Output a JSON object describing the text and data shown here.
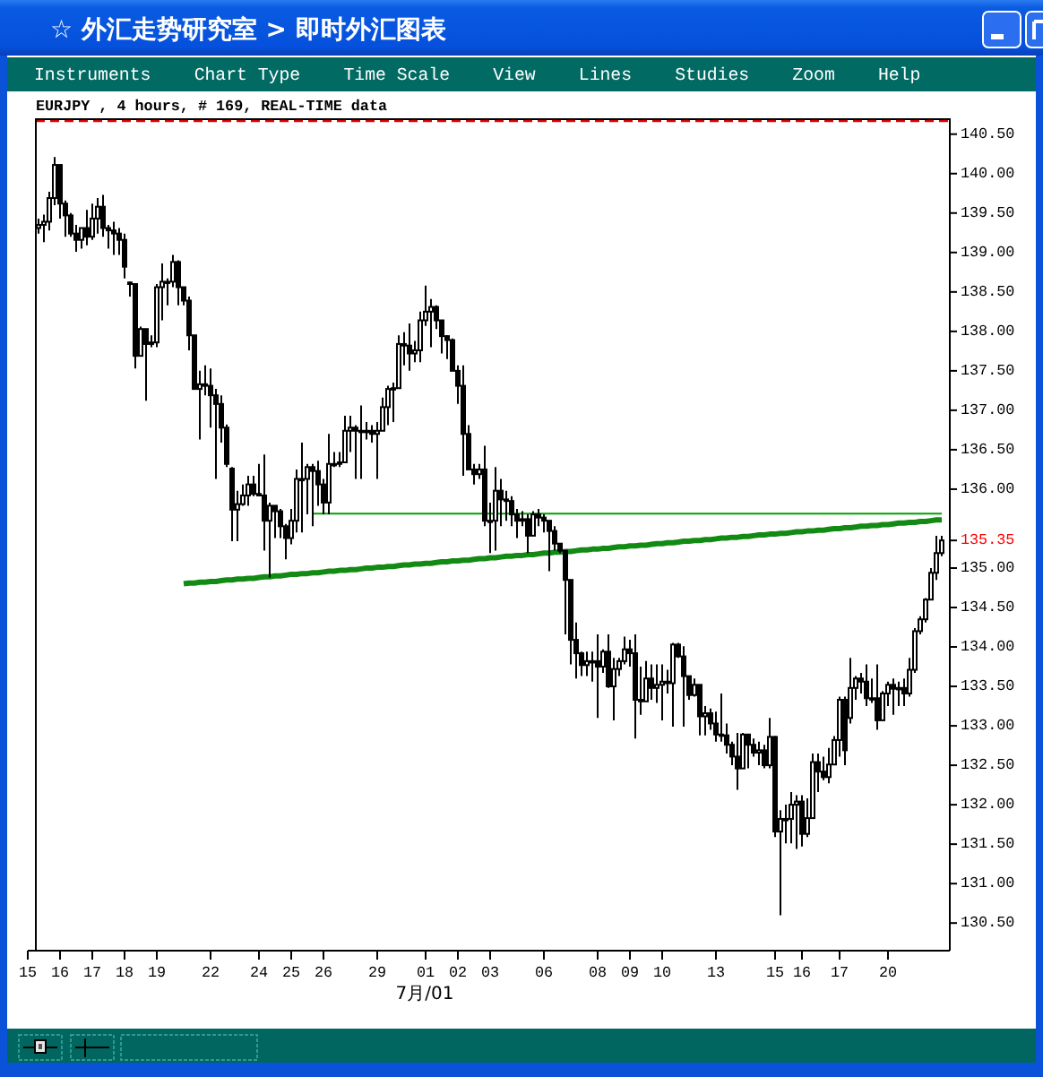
{
  "chart_data": {
    "type": "candlestick",
    "title": "☆ 外汇走势研究室 > 即时外汇图表",
    "subtitle": "EURJPY , 4 hours, # 169, REAL-TIME data",
    "xlabel": "7月/01",
    "annotations": [
      "Instruments",
      "Chart Type",
      "Time Scale",
      "View",
      "Lines",
      "Studies",
      "Zoom",
      "Help",
      "135.35"
    ],
    "categories": [
      "15",
      null,
      null,
      null,
      null,
      null,
      "16",
      null,
      null,
      null,
      null,
      null,
      "17",
      null,
      null,
      null,
      null,
      null,
      "18",
      null,
      null,
      null,
      null,
      null,
      "19",
      null,
      null,
      null,
      null,
      null,
      null,
      null,
      null,
      null,
      "22",
      null,
      null,
      null,
      null,
      null,
      null,
      null,
      null,
      "24",
      null,
      null,
      null,
      null,
      null,
      "25",
      null,
      null,
      null,
      null,
      null,
      "26",
      null,
      null,
      null,
      null,
      null,
      null,
      null,
      null,
      null,
      "29",
      null,
      null,
      null,
      null,
      null,
      null,
      null,
      null,
      "01",
      null,
      null,
      null,
      null,
      null,
      "02",
      null,
      null,
      null,
      null,
      null,
      "03",
      null,
      null,
      null,
      null,
      null,
      null,
      null,
      null,
      null,
      "06",
      null,
      null,
      null,
      null,
      null,
      null,
      null,
      null,
      null,
      "08",
      null,
      null,
      null,
      null,
      null,
      "09",
      null,
      null,
      null,
      null,
      null,
      "10",
      null,
      null,
      null,
      null,
      null,
      null,
      null,
      null,
      null,
      "13",
      null,
      null,
      null,
      null,
      null,
      null,
      null,
      null,
      null,
      null,
      "15",
      null,
      null,
      null,
      null,
      "16",
      null,
      null,
      null,
      null,
      null,
      null,
      "17",
      null,
      null,
      null,
      null,
      null,
      null,
      null,
      null,
      "20",
      null,
      null,
      null,
      null,
      null,
      null,
      null,
      null,
      null,
      null
    ],
    "ohlc": [
      null,
      null,
      [
        139.31,
        139.43,
        139.24,
        139.35
      ],
      [
        139.35,
        139.48,
        139.13,
        139.39
      ],
      [
        139.39,
        139.77,
        139.28,
        139.69
      ],
      [
        139.69,
        140.21,
        139.6,
        140.11
      ],
      [
        140.11,
        140.11,
        139.43,
        139.62
      ],
      [
        139.62,
        139.66,
        139.2,
        139.47
      ],
      [
        139.47,
        139.5,
        139.2,
        139.24
      ],
      [
        139.24,
        139.35,
        139.01,
        139.16
      ],
      [
        139.16,
        139.31,
        139.05,
        139.31
      ],
      [
        139.31,
        139.54,
        139.09,
        139.2
      ],
      [
        139.2,
        139.62,
        139.16,
        139.43
      ],
      [
        139.43,
        139.69,
        139.24,
        139.58
      ],
      [
        139.58,
        139.73,
        139.2,
        139.31
      ],
      [
        139.31,
        139.35,
        139.05,
        139.28
      ],
      [
        139.28,
        139.39,
        138.97,
        139.24
      ],
      [
        139.24,
        139.31,
        138.97,
        139.16
      ],
      [
        139.16,
        139.24,
        138.67,
        138.82
      ],
      [
        138.6,
        138.63,
        138.44,
        138.62
      ],
      [
        138.6,
        138.6,
        137.53,
        137.69
      ],
      [
        137.69,
        138.06,
        137.69,
        138.03
      ],
      [
        138.03,
        138.03,
        137.12,
        137.84
      ],
      [
        137.84,
        137.95,
        137.8,
        137.86
      ],
      [
        137.86,
        138.6,
        137.8,
        138.56
      ],
      [
        138.56,
        138.86,
        138.14,
        138.63
      ],
      [
        138.63,
        138.67,
        138.33,
        138.63
      ],
      [
        138.63,
        138.97,
        138.56,
        138.88
      ],
      [
        138.88,
        138.9,
        138.33,
        138.56
      ],
      [
        138.56,
        138.56,
        138.33,
        138.39
      ],
      [
        138.39,
        138.44,
        137.76,
        137.95
      ],
      [
        137.95,
        137.95,
        137.27,
        137.27
      ],
      [
        137.27,
        137.5,
        136.63,
        137.33
      ],
      [
        137.33,
        137.57,
        137.19,
        137.31
      ],
      [
        137.31,
        137.53,
        136.78,
        137.19
      ],
      [
        137.19,
        137.27,
        136.13,
        137.08
      ],
      [
        137.08,
        137.19,
        136.59,
        136.78
      ],
      [
        136.78,
        136.82,
        136.28,
        136.32
      ],
      [
        136.26,
        136.28,
        135.34,
        135.74
      ],
      [
        135.74,
        135.98,
        135.34,
        135.81
      ],
      [
        135.81,
        136.06,
        135.79,
        135.92
      ],
      [
        135.92,
        136.17,
        135.79,
        136.06
      ],
      [
        136.06,
        136.17,
        135.91,
        135.94
      ],
      [
        135.94,
        136.32,
        135.91,
        135.92
      ],
      [
        135.92,
        136.44,
        135.22,
        135.6
      ],
      [
        135.6,
        135.83,
        134.88,
        135.79
      ],
      [
        135.79,
        135.79,
        135.38,
        135.72
      ],
      [
        135.72,
        135.75,
        135.38,
        135.53
      ],
      [
        135.53,
        135.56,
        135.11,
        135.38
      ],
      [
        135.38,
        135.75,
        135.3,
        135.6
      ],
      [
        135.6,
        136.25,
        135.45,
        136.13
      ],
      [
        136.13,
        136.59,
        135.45,
        136.13
      ],
      [
        136.13,
        136.32,
        135.68,
        136.28
      ],
      [
        136.28,
        136.32,
        135.53,
        136.23
      ],
      [
        136.23,
        136.36,
        135.79,
        136.06
      ],
      [
        136.06,
        136.13,
        135.68,
        135.83
      ],
      [
        135.83,
        136.7,
        135.68,
        136.32
      ],
      [
        136.32,
        136.47,
        136.28,
        136.32
      ],
      [
        136.32,
        136.47,
        136.28,
        136.34
      ],
      [
        136.34,
        136.93,
        136.34,
        136.74
      ],
      [
        136.74,
        136.93,
        136.47,
        136.78
      ],
      [
        136.78,
        136.81,
        136.13,
        136.74
      ],
      [
        136.74,
        137.06,
        136.13,
        136.74
      ],
      [
        136.74,
        136.85,
        136.63,
        136.74
      ],
      [
        136.74,
        136.81,
        136.59,
        136.7
      ],
      [
        136.7,
        136.85,
        136.13,
        136.74
      ],
      [
        136.74,
        137.16,
        136.74,
        137.04
      ],
      [
        137.04,
        137.31,
        136.81,
        137.27
      ],
      [
        137.27,
        137.35,
        136.85,
        137.28
      ],
      [
        137.28,
        137.95,
        137.27,
        137.84
      ],
      [
        137.84,
        137.99,
        137.57,
        137.82
      ],
      [
        137.82,
        138.1,
        137.5,
        137.72
      ],
      [
        137.72,
        137.88,
        137.61,
        137.76
      ],
      [
        137.76,
        138.25,
        137.61,
        138.14
      ],
      [
        138.14,
        138.58,
        138.07,
        138.25
      ],
      [
        138.25,
        138.41,
        137.8,
        138.31
      ],
      [
        138.31,
        138.33,
        138.03,
        138.14
      ],
      [
        138.14,
        138.14,
        137.72,
        137.94
      ],
      [
        137.94,
        137.95,
        137.65,
        137.89
      ],
      [
        137.89,
        137.91,
        137.5,
        137.5
      ],
      [
        137.5,
        137.57,
        137.08,
        137.31
      ],
      [
        137.31,
        137.57,
        136.17,
        136.7
      ],
      [
        136.7,
        136.81,
        136.25,
        136.25
      ],
      [
        136.25,
        136.32,
        136.06,
        136.19
      ],
      [
        136.19,
        136.32,
        136.13,
        136.25
      ],
      [
        136.25,
        136.55,
        135.53,
        135.6
      ],
      [
        135.6,
        135.83,
        135.19,
        135.6
      ],
      [
        135.6,
        136.28,
        135.22,
        135.98
      ],
      [
        135.98,
        136.13,
        135.53,
        135.87
      ],
      [
        135.87,
        135.98,
        135.6,
        135.85
      ],
      [
        135.85,
        135.91,
        135.53,
        135.68
      ],
      [
        135.68,
        135.75,
        135.38,
        135.6
      ],
      [
        135.6,
        135.72,
        135.53,
        135.62
      ],
      [
        135.62,
        135.68,
        135.19,
        135.41
      ],
      [
        135.41,
        135.72,
        135.41,
        135.68
      ],
      [
        135.68,
        135.75,
        135.53,
        135.64
      ],
      [
        135.64,
        135.68,
        135.45,
        135.6
      ],
      [
        135.6,
        135.6,
        134.96,
        135.47
      ],
      [
        135.47,
        135.53,
        135.22,
        135.31
      ],
      [
        135.31,
        135.31,
        135.19,
        135.22
      ],
      [
        135.22,
        135.22,
        134.16,
        134.85
      ],
      [
        134.85,
        134.85,
        133.78,
        134.09
      ],
      [
        134.09,
        134.31,
        133.6,
        133.92
      ],
      [
        133.92,
        133.94,
        133.63,
        133.77
      ],
      [
        133.77,
        133.94,
        133.63,
        133.82
      ],
      [
        133.82,
        133.94,
        133.56,
        133.82
      ],
      [
        133.82,
        134.16,
        133.1,
        133.75
      ],
      [
        133.75,
        133.97,
        133.67,
        133.94
      ],
      [
        133.94,
        134.16,
        133.48,
        133.5
      ],
      [
        133.5,
        133.86,
        133.07,
        133.72
      ],
      [
        133.72,
        133.86,
        133.63,
        133.82
      ],
      [
        133.82,
        134.13,
        133.78,
        133.97
      ],
      [
        133.97,
        134.09,
        133.75,
        133.92
      ],
      [
        133.92,
        134.16,
        132.84,
        133.33
      ],
      [
        133.33,
        133.75,
        133.14,
        133.31
      ],
      [
        133.31,
        133.82,
        133.31,
        133.6
      ],
      [
        133.6,
        133.78,
        133.33,
        133.48
      ],
      [
        133.48,
        133.78,
        133.29,
        133.52
      ],
      [
        133.52,
        133.78,
        133.07,
        133.56
      ],
      [
        133.56,
        133.71,
        133.41,
        133.54
      ],
      [
        133.54,
        134.05,
        132.99,
        134.03
      ],
      [
        134.03,
        134.05,
        133.86,
        133.88
      ],
      [
        133.88,
        134.01,
        132.99,
        133.63
      ],
      [
        133.63,
        133.63,
        133.33,
        133.39
      ],
      [
        133.39,
        133.6,
        133.37,
        133.52
      ],
      [
        133.52,
        133.52,
        132.88,
        133.12
      ],
      [
        133.12,
        133.25,
        132.88,
        133.16
      ],
      [
        133.16,
        133.22,
        132.95,
        133.03
      ],
      [
        133.03,
        133.18,
        132.8,
        132.89
      ],
      [
        132.89,
        133.41,
        132.8,
        132.88
      ],
      [
        132.88,
        133.03,
        132.65,
        132.76
      ],
      [
        132.76,
        132.8,
        132.5,
        132.61
      ],
      [
        132.61,
        132.91,
        132.19,
        132.46
      ],
      [
        132.46,
        132.91,
        132.46,
        132.89
      ],
      [
        132.89,
        132.89,
        132.46,
        132.76
      ],
      [
        132.76,
        132.84,
        132.61,
        132.66
      ],
      [
        132.66,
        132.8,
        132.5,
        132.69
      ],
      [
        132.69,
        132.76,
        132.46,
        132.5
      ],
      [
        132.5,
        133.1,
        132.46,
        132.86
      ],
      [
        132.86,
        132.87,
        131.59,
        131.66
      ],
      [
        131.66,
        131.93,
        130.6,
        131.82
      ],
      [
        131.82,
        132.0,
        131.51,
        131.82
      ],
      [
        131.82,
        132.16,
        131.51,
        132.0
      ],
      [
        132.0,
        132.12,
        131.44,
        132.04
      ],
      [
        132.04,
        132.12,
        131.47,
        131.63
      ],
      [
        131.63,
        132.08,
        131.59,
        131.83
      ],
      [
        131.83,
        132.65,
        131.82,
        132.54
      ],
      [
        132.54,
        132.65,
        132.16,
        132.42
      ],
      [
        132.42,
        132.61,
        132.31,
        132.35
      ],
      [
        132.35,
        132.72,
        132.27,
        132.51
      ],
      [
        132.51,
        132.87,
        132.51,
        132.82
      ],
      [
        132.82,
        133.37,
        132.61,
        133.33
      ],
      [
        133.33,
        133.37,
        132.5,
        132.69
      ],
      [
        133.1,
        133.86,
        133.03,
        133.48
      ],
      [
        133.48,
        133.63,
        133.33,
        133.6
      ],
      [
        133.6,
        133.67,
        133.41,
        133.56
      ],
      [
        133.56,
        133.78,
        133.25,
        133.35
      ],
      [
        133.35,
        133.6,
        133.29,
        133.35
      ],
      [
        133.35,
        133.78,
        132.95,
        133.07
      ],
      [
        133.07,
        133.44,
        133.07,
        133.41
      ],
      [
        133.41,
        133.56,
        133.25,
        133.52
      ],
      [
        133.52,
        133.6,
        133.14,
        133.47
      ],
      [
        133.47,
        133.56,
        133.25,
        133.48
      ],
      [
        133.48,
        133.6,
        133.25,
        133.41
      ],
      [
        133.41,
        133.86,
        133.37,
        133.71
      ],
      [
        133.71,
        134.24,
        133.67,
        134.2
      ],
      [
        134.2,
        134.39,
        134.16,
        134.35
      ],
      [
        134.35,
        134.62,
        134.31,
        134.6
      ],
      [
        134.6,
        135.0,
        134.6,
        134.94
      ],
      [
        134.94,
        135.41,
        134.85,
        135.19
      ],
      [
        135.19,
        135.41,
        135.15,
        135.35
      ]
    ],
    "series": [
      {
        "type": "line",
        "color": "#138a13",
        "values": [
          null,
          null,
          null,
          null,
          null,
          null,
          null,
          null,
          null,
          null,
          null,
          null,
          null,
          null,
          null,
          null,
          null,
          null,
          null,
          null,
          null,
          null,
          null,
          null,
          null,
          null,
          null,
          null,
          null,
          134.8,
          134.81,
          134.81,
          134.82,
          134.82,
          134.83,
          134.83,
          134.84,
          134.85,
          134.85,
          134.86,
          134.86,
          134.87,
          134.87,
          134.88,
          134.89,
          134.89,
          134.9,
          134.9,
          134.91,
          134.92,
          134.92,
          134.93,
          134.93,
          134.94,
          134.94,
          134.95,
          134.96,
          134.96,
          134.97,
          134.97,
          134.98,
          134.98,
          134.99,
          135,
          135,
          135.01,
          135.01,
          135.02,
          135.02,
          135.03,
          135.04,
          135.04,
          135.05,
          135.05,
          135.06,
          135.06,
          135.07,
          135.08,
          135.08,
          135.09,
          135.09,
          135.1,
          135.1,
          135.11,
          135.12,
          135.12,
          135.13,
          135.13,
          135.14,
          135.15,
          135.15,
          135.16,
          135.16,
          135.17,
          135.17,
          135.18,
          135.19,
          135.19,
          135.2,
          135.2,
          135.21,
          135.21,
          135.22,
          135.23,
          135.23,
          135.24,
          135.24,
          135.25,
          135.25,
          135.26,
          135.27,
          135.27,
          135.28,
          135.28,
          135.29,
          135.29,
          135.3,
          135.31,
          135.31,
          135.32,
          135.32,
          135.33,
          135.34,
          135.34,
          135.35,
          135.35,
          135.36,
          135.36,
          135.37,
          135.38,
          135.38,
          135.39,
          135.39,
          135.4,
          135.4,
          135.41,
          135.42,
          135.42,
          135.43,
          135.43,
          135.44,
          135.44,
          135.45,
          135.46,
          135.46,
          135.47,
          135.47,
          135.48,
          135.48,
          135.49,
          135.5,
          135.5,
          135.51,
          135.51,
          135.52,
          135.53,
          135.53,
          135.54,
          135.54,
          135.55,
          135.55,
          135.56,
          135.57,
          135.57,
          135.58,
          135.58,
          135.59,
          135.59,
          135.6,
          135.61,
          135.61
        ]
      },
      {
        "type": "line",
        "color": "#00a000",
        "values": [
          null,
          null,
          null,
          null,
          null,
          null,
          null,
          null,
          null,
          null,
          null,
          null,
          null,
          null,
          null,
          null,
          null,
          null,
          null,
          null,
          null,
          null,
          null,
          null,
          null,
          null,
          null,
          null,
          null,
          null,
          null,
          null,
          null,
          null,
          null,
          null,
          null,
          null,
          null,
          null,
          null,
          null,
          null,
          null,
          null,
          null,
          null,
          null,
          null,
          null,
          null,
          null,
          null,
          135.69,
          135.69,
          135.69,
          135.69,
          135.69,
          135.69,
          135.69,
          135.69,
          135.69,
          135.69,
          135.69,
          135.69,
          135.69,
          135.69,
          135.69,
          135.69,
          135.69,
          135.69,
          135.69,
          135.69,
          135.69,
          135.69,
          135.69,
          135.69,
          135.69,
          135.69,
          135.69,
          135.69,
          135.69,
          135.69,
          135.69,
          135.69,
          135.69,
          135.69,
          135.69,
          135.69,
          135.69,
          135.69,
          135.69,
          135.69,
          135.69,
          135.69,
          135.69,
          135.69,
          135.69,
          135.69,
          135.69,
          135.69,
          135.69,
          135.69,
          135.69,
          135.69,
          135.69,
          135.69,
          135.69,
          135.69,
          135.69,
          135.69,
          135.69,
          135.69,
          135.69,
          135.69,
          135.69,
          135.69,
          135.69,
          135.69,
          135.69,
          135.69,
          135.69,
          135.69,
          135.69,
          135.69,
          135.69,
          135.69,
          135.69,
          135.69,
          135.69,
          135.69,
          135.69,
          135.69,
          135.69,
          135.69,
          135.69,
          135.69,
          135.69,
          135.69,
          135.69,
          135.69,
          135.69,
          135.69,
          135.69,
          135.69,
          135.69,
          135.69,
          135.69,
          135.69,
          135.69,
          135.69,
          135.69,
          135.69,
          135.69,
          135.69,
          135.69,
          135.69,
          135.69,
          135.69,
          135.69,
          135.69,
          135.69,
          135.69,
          135.69,
          135.69,
          135.69,
          135.69,
          135.69,
          135.69,
          135.69,
          135.69
        ]
      }
    ],
    "ref_lines": [
      {
        "axis": "y",
        "value": 140.67,
        "color": "#dd0000",
        "line_style": "dashed"
      }
    ],
    "ylim": [
      130.15,
      140.69
    ],
    "yticks": [
      {
        "value": 130.5,
        "label": "130.50"
      },
      {
        "value": 131,
        "label": "131.00"
      },
      {
        "value": 131.5,
        "label": "131.50"
      },
      {
        "value": 132,
        "label": "132.00"
      },
      {
        "value": 132.5,
        "label": "132.50"
      },
      {
        "value": 133,
        "label": "133.00"
      },
      {
        "value": 133.5,
        "label": "133.50"
      },
      {
        "value": 134,
        "label": "134.00"
      },
      {
        "value": 134.5,
        "label": "134.50"
      },
      {
        "value": 135,
        "label": "135.00"
      },
      {
        "value": 136,
        "label": "136.00"
      },
      {
        "value": 136.5,
        "label": "136.50"
      },
      {
        "value": 137,
        "label": "137.00"
      },
      {
        "value": 137.5,
        "label": "137.50"
      },
      {
        "value": 138,
        "label": "138.00"
      },
      {
        "value": 138.5,
        "label": "138.50"
      },
      {
        "value": 139,
        "label": "139.00"
      },
      {
        "value": 139.5,
        "label": "139.50"
      },
      {
        "value": 140,
        "label": "140.00"
      },
      {
        "value": 140.5,
        "label": "140.50"
      }
    ]
  }
}
